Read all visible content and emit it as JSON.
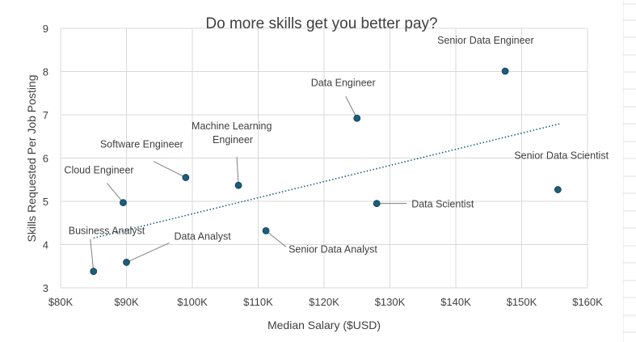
{
  "colors": {
    "marker": "#1b5e7b",
    "trendline": "#1b5e7b",
    "gridline": "#d9d9d9",
    "leader": "#7f7f7f",
    "text": "#404040",
    "sheet_grid": "#e0e0e0"
  },
  "chart_data": {
    "type": "scatter",
    "title": "Do more skills get you better pay?",
    "xlabel": "Median Salary ($USD)",
    "ylabel": "Skills Requested Per Job Posting",
    "xlim": [
      80000,
      160000
    ],
    "ylim": [
      3,
      9
    ],
    "x_ticks": [
      80000,
      90000,
      100000,
      110000,
      120000,
      130000,
      140000,
      150000,
      160000
    ],
    "x_tick_labels": [
      "$80K",
      "$90K",
      "$100K",
      "$110K",
      "$120K",
      "$130K",
      "$140K",
      "$150K",
      "$160K"
    ],
    "y_ticks": [
      3,
      4,
      5,
      6,
      7,
      8,
      9
    ],
    "y_tick_labels": [
      "3",
      "4",
      "5",
      "6",
      "7",
      "8",
      "9"
    ],
    "grid": true,
    "trendline": {
      "type": "linear",
      "x": [
        85000,
        156000
      ],
      "y": [
        4.15,
        6.8
      ],
      "style": "dotted"
    },
    "points": [
      {
        "label": "Business Analyst",
        "x": 85000,
        "y": 3.38
      },
      {
        "label": "Data Analyst",
        "x": 90000,
        "y": 3.59
      },
      {
        "label": "Cloud Engineer",
        "x": 89500,
        "y": 4.97
      },
      {
        "label": "Software Engineer",
        "x": 99000,
        "y": 5.55
      },
      {
        "label": "Machine Learning Engineer",
        "x": 107000,
        "y": 5.37
      },
      {
        "label": "Senior Data Analyst",
        "x": 111175,
        "y": 4.32
      },
      {
        "label": "Data Engineer",
        "x": 125000,
        "y": 6.92
      },
      {
        "label": "Data Scientist",
        "x": 128000,
        "y": 4.95
      },
      {
        "label": "Senior Data Engineer",
        "x": 147500,
        "y": 8.01
      },
      {
        "label": "Senior Data Scientist",
        "x": 155500,
        "y": 5.27
      }
    ]
  }
}
